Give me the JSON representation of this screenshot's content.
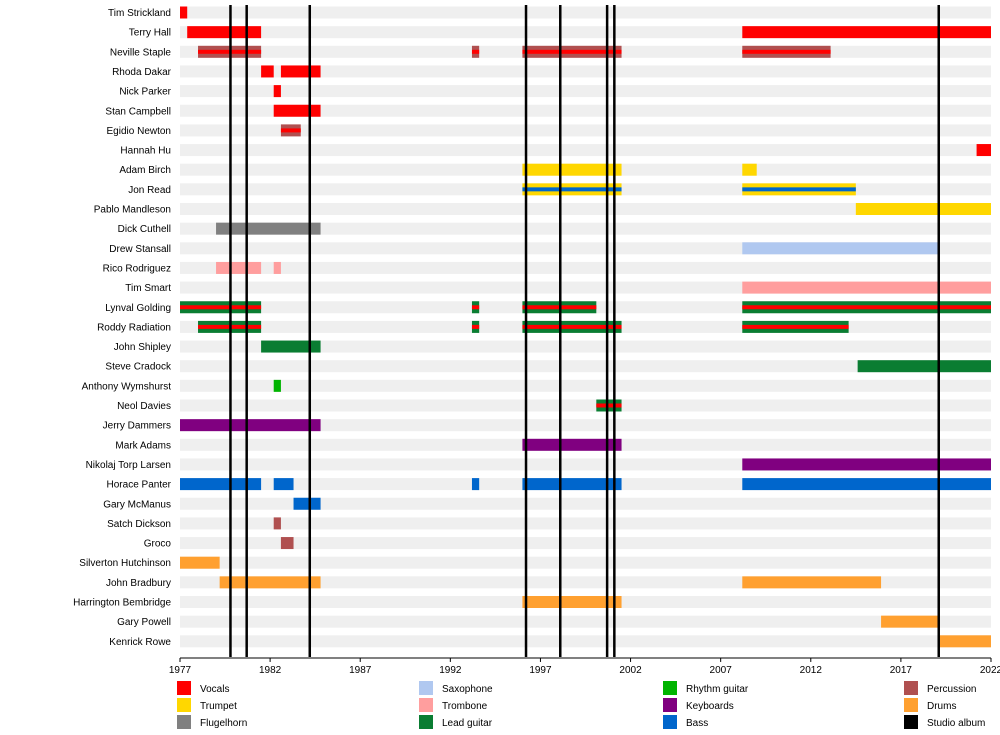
{
  "chart_data": {
    "type": "timeline",
    "title": "",
    "xlabel": "",
    "ylabel": "",
    "xlim": [
      1977,
      2022
    ],
    "x_ticks": [
      1977,
      1982,
      1987,
      1992,
      1997,
      2002,
      2007,
      2012,
      2017,
      2022
    ],
    "x_tick_labels": [
      "1977",
      "1982",
      "1987",
      "1992",
      "1997",
      "2002",
      "2007",
      "2012",
      "2017",
      "2022"
    ],
    "members": [
      "Tim Strickland",
      "Terry Hall",
      "Neville Staple",
      "Rhoda Dakar",
      "Nick Parker",
      "Stan Campbell",
      "Egidio Newton",
      "Hannah Hu",
      "Adam Birch",
      "Jon Read",
      "Pablo Mandleson",
      "Dick Cuthell",
      "Drew Stansall",
      "Rico Rodriguez",
      "Tim Smart",
      "Lynval Golding",
      "Roddy Radiation",
      "John Shipley",
      "Steve Cradock",
      "Anthony Wymshurst",
      "Neol Davies",
      "Jerry Dammers",
      "Mark Adams",
      "Nikolaj Torp Larsen",
      "Horace Panter",
      "Gary McManus",
      "Satch Dickson",
      "Groco",
      "Silverton Hutchinson",
      "John Bradbury",
      "Harrington Bembridge",
      "Gary Powell",
      "Kenrick Rowe"
    ],
    "roles": [
      {
        "key": "vocals",
        "label": "Vocals",
        "color": "#ff0000"
      },
      {
        "key": "trumpet",
        "label": "Trumpet",
        "color": "#ffd700"
      },
      {
        "key": "flugelhorn",
        "label": "Flugelhorn",
        "color": "#808080"
      },
      {
        "key": "saxophone",
        "label": "Saxophone",
        "color": "#b0c8f0"
      },
      {
        "key": "trombone",
        "label": "Trombone",
        "color": "#ff9e9e"
      },
      {
        "key": "lead_guitar",
        "label": "Lead guitar",
        "color": "#0a7d32"
      },
      {
        "key": "rhythm_guitar",
        "label": "Rhythm guitar",
        "color": "#00b400"
      },
      {
        "key": "keyboards",
        "label": "Keyboards",
        "color": "#800080"
      },
      {
        "key": "bass",
        "label": "Bass",
        "color": "#0066cc"
      },
      {
        "key": "percussion",
        "label": "Percussion",
        "color": "#b05050"
      },
      {
        "key": "drums",
        "label": "Drums",
        "color": "#ffa030"
      },
      {
        "key": "studio_album",
        "label": "Studio album",
        "color": "#000000"
      }
    ],
    "studio_albums": [
      1979.8,
      1980.7,
      1984.2,
      1996.2,
      1998.1,
      2000.7,
      2001.1,
      2019.1
    ],
    "bars": [
      {
        "member": "Tim Strickland",
        "role": "vocals",
        "start": 1977.0,
        "end": 1977.4
      },
      {
        "member": "Terry Hall",
        "role": "vocals",
        "start": 1977.4,
        "end": 1981.5
      },
      {
        "member": "Terry Hall",
        "role": "vocals",
        "start": 2008.2,
        "end": 2022.0
      },
      {
        "member": "Neville Staple",
        "role": "percussion",
        "start": 1978.0,
        "end": 1981.5,
        "accent": "vocals"
      },
      {
        "member": "Neville Staple",
        "role": "percussion",
        "start": 1993.2,
        "end": 1993.6,
        "accent": "vocals"
      },
      {
        "member": "Neville Staple",
        "role": "percussion",
        "start": 1996.0,
        "end": 2001.5,
        "accent": "vocals"
      },
      {
        "member": "Neville Staple",
        "role": "percussion",
        "start": 2008.2,
        "end": 2013.1,
        "accent": "vocals"
      },
      {
        "member": "Rhoda Dakar",
        "role": "vocals",
        "start": 1981.5,
        "end": 1982.2
      },
      {
        "member": "Rhoda Dakar",
        "role": "vocals",
        "start": 1982.6,
        "end": 1984.8
      },
      {
        "member": "Nick Parker",
        "role": "vocals",
        "start": 1982.2,
        "end": 1982.6
      },
      {
        "member": "Stan Campbell",
        "role": "vocals",
        "start": 1982.2,
        "end": 1984.8
      },
      {
        "member": "Egidio Newton",
        "role": "percussion",
        "start": 1982.6,
        "end": 1983.7,
        "accent": "vocals"
      },
      {
        "member": "Hannah Hu",
        "role": "vocals",
        "start": 2021.2,
        "end": 2022.0
      },
      {
        "member": "Adam Birch",
        "role": "trumpet",
        "start": 1996.0,
        "end": 2001.5
      },
      {
        "member": "Adam Birch",
        "role": "trumpet",
        "start": 2008.2,
        "end": 2009.0
      },
      {
        "member": "Jon Read",
        "role": "trumpet",
        "start": 1996.0,
        "end": 2001.5,
        "accent": "bass"
      },
      {
        "member": "Jon Read",
        "role": "trumpet",
        "start": 2008.2,
        "end": 2014.5,
        "accent": "bass"
      },
      {
        "member": "Pablo Mandleson",
        "role": "trumpet",
        "start": 2014.5,
        "end": 2022.0
      },
      {
        "member": "Dick Cuthell",
        "role": "flugelhorn",
        "start": 1979.0,
        "end": 1984.8
      },
      {
        "member": "Drew Stansall",
        "role": "saxophone",
        "start": 2008.2,
        "end": 2019.1
      },
      {
        "member": "Rico Rodriguez",
        "role": "trombone",
        "start": 1979.0,
        "end": 1981.5
      },
      {
        "member": "Rico Rodriguez",
        "role": "trombone",
        "start": 1982.2,
        "end": 1982.6
      },
      {
        "member": "Tim Smart",
        "role": "trombone",
        "start": 2008.2,
        "end": 2022.0
      },
      {
        "member": "Lynval Golding",
        "role": "lead_guitar",
        "start": 1977.0,
        "end": 1981.5,
        "accent": "vocals"
      },
      {
        "member": "Lynval Golding",
        "role": "lead_guitar",
        "start": 1993.2,
        "end": 1993.6,
        "accent": "vocals"
      },
      {
        "member": "Lynval Golding",
        "role": "lead_guitar",
        "start": 1996.0,
        "end": 2000.1,
        "accent": "vocals"
      },
      {
        "member": "Lynval Golding",
        "role": "lead_guitar",
        "start": 2008.2,
        "end": 2022.0,
        "accent": "vocals"
      },
      {
        "member": "Roddy Radiation",
        "role": "lead_guitar",
        "start": 1978.0,
        "end": 1981.5,
        "accent": "vocals"
      },
      {
        "member": "Roddy Radiation",
        "role": "lead_guitar",
        "start": 1993.2,
        "end": 1993.6,
        "accent": "vocals"
      },
      {
        "member": "Roddy Radiation",
        "role": "lead_guitar",
        "start": 1996.0,
        "end": 2001.5,
        "accent": "vocals"
      },
      {
        "member": "Roddy Radiation",
        "role": "lead_guitar",
        "start": 2008.2,
        "end": 2014.1,
        "accent": "vocals"
      },
      {
        "member": "John Shipley",
        "role": "lead_guitar",
        "start": 1981.5,
        "end": 1984.8
      },
      {
        "member": "Steve Cradock",
        "role": "lead_guitar",
        "start": 2014.6,
        "end": 2022.0
      },
      {
        "member": "Anthony Wymshurst",
        "role": "rhythm_guitar",
        "start": 1982.2,
        "end": 1982.6
      },
      {
        "member": "Neol Davies",
        "role": "lead_guitar",
        "start": 2000.1,
        "end": 2001.5,
        "accent": "vocals"
      },
      {
        "member": "Jerry Dammers",
        "role": "keyboards",
        "start": 1977.0,
        "end": 1984.8
      },
      {
        "member": "Mark Adams",
        "role": "keyboards",
        "start": 1996.0,
        "end": 2001.5
      },
      {
        "member": "Nikolaj Torp Larsen",
        "role": "keyboards",
        "start": 2008.2,
        "end": 2022.0
      },
      {
        "member": "Horace Panter",
        "role": "bass",
        "start": 1977.0,
        "end": 1981.5
      },
      {
        "member": "Horace Panter",
        "role": "bass",
        "start": 1982.2,
        "end": 1983.3
      },
      {
        "member": "Horace Panter",
        "role": "bass",
        "start": 1993.2,
        "end": 1993.6
      },
      {
        "member": "Horace Panter",
        "role": "bass",
        "start": 1996.0,
        "end": 2001.5
      },
      {
        "member": "Horace Panter",
        "role": "bass",
        "start": 2008.2,
        "end": 2022.0
      },
      {
        "member": "Gary McManus",
        "role": "bass",
        "start": 1983.3,
        "end": 1984.8
      },
      {
        "member": "Satch Dickson",
        "role": "percussion",
        "start": 1982.2,
        "end": 1982.6
      },
      {
        "member": "Groco",
        "role": "percussion",
        "start": 1982.6,
        "end": 1983.3
      },
      {
        "member": "Silverton Hutchinson",
        "role": "drums",
        "start": 1977.0,
        "end": 1979.2
      },
      {
        "member": "John Bradbury",
        "role": "drums",
        "start": 1979.2,
        "end": 1984.8
      },
      {
        "member": "John Bradbury",
        "role": "drums",
        "start": 2008.2,
        "end": 2015.9
      },
      {
        "member": "Harrington Bembridge",
        "role": "drums",
        "start": 1996.0,
        "end": 2001.5
      },
      {
        "member": "Gary Powell",
        "role": "drums",
        "start": 2015.9,
        "end": 2019.1
      },
      {
        "member": "Kenrick Rowe",
        "role": "drums",
        "start": 2019.1,
        "end": 2022.0
      }
    ]
  }
}
